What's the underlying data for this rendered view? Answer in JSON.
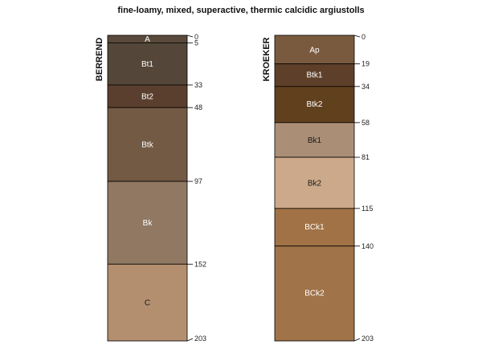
{
  "chart_data": {
    "type": "soil-profile",
    "title": "fine-loamy, mixed, superactive, thermic calcidic argiustolls",
    "depth_range": [
      0,
      203
    ],
    "profiles": [
      {
        "name": "BERREND",
        "horizons": [
          {
            "name": "A",
            "top": 0,
            "bottom": 5,
            "color": "#5a4a3c",
            "label_color": "#ffffff"
          },
          {
            "name": "Bt1",
            "top": 5,
            "bottom": 33,
            "color": "#54473a",
            "label_color": "#ffffff"
          },
          {
            "name": "Bt2",
            "top": 33,
            "bottom": 48,
            "color": "#5b3f2e",
            "label_color": "#ffffff"
          },
          {
            "name": "Btk",
            "top": 48,
            "bottom": 97,
            "color": "#735a44",
            "label_color": "#ffffff"
          },
          {
            "name": "Bk",
            "top": 97,
            "bottom": 152,
            "color": "#907862",
            "label_color": "#ffffff"
          },
          {
            "name": "C",
            "top": 152,
            "bottom": 203,
            "color": "#b38f70",
            "label_color": "#1a1a1a"
          }
        ],
        "depth_labels": [
          "0",
          "5",
          "33",
          "48",
          "97",
          "152",
          "203"
        ]
      },
      {
        "name": "KROEKER",
        "horizons": [
          {
            "name": "Ap",
            "top": 0,
            "bottom": 19,
            "color": "#7a5a3e",
            "label_color": "#ffffff"
          },
          {
            "name": "Btk1",
            "top": 19,
            "bottom": 34,
            "color": "#5e402a",
            "label_color": "#ffffff"
          },
          {
            "name": "Btk2",
            "top": 34,
            "bottom": 58,
            "color": "#61401e",
            "label_color": "#ffffff"
          },
          {
            "name": "Bk1",
            "top": 58,
            "bottom": 81,
            "color": "#aa8f76",
            "label_color": "#1a1a1a"
          },
          {
            "name": "Bk2",
            "top": 81,
            "bottom": 115,
            "color": "#cca98a",
            "label_color": "#1a1a1a"
          },
          {
            "name": "BCk1",
            "top": 115,
            "bottom": 140,
            "color": "#a17245",
            "label_color": "#ffffff"
          },
          {
            "name": "BCk2",
            "top": 140,
            "bottom": 203,
            "color": "#a17349",
            "label_color": "#ffffff"
          }
        ],
        "depth_labels": [
          "0",
          "19",
          "34",
          "58",
          "81",
          "115",
          "140",
          "203"
        ]
      }
    ]
  }
}
